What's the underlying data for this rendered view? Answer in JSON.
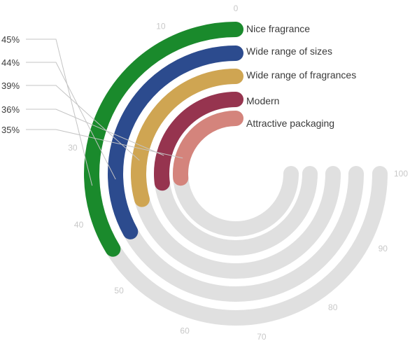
{
  "chart_data": {
    "type": "radial-bar",
    "scale_min": 0,
    "scale_max": 100,
    "ticks": [
      "0",
      "10",
      "30",
      "40",
      "50",
      "60",
      "70",
      "80",
      "90",
      "100"
    ],
    "track_color": "#e0e0e0",
    "series": [
      {
        "name": "Nice fragrance",
        "value": 45,
        "label": "45%",
        "color": "#1a8a2c"
      },
      {
        "name": "Wide range of sizes",
        "value": 44,
        "label": "44%",
        "color": "#2c4b8e"
      },
      {
        "name": "Wide range of fragrances",
        "value": 39,
        "label": "39%",
        "color": "#cfa552"
      },
      {
        "name": "Modern",
        "value": 36,
        "label": "36%",
        "color": "#96344f"
      },
      {
        "name": "Attractive packaging",
        "value": 35,
        "label": "35%",
        "color": "#d4847c"
      }
    ]
  }
}
